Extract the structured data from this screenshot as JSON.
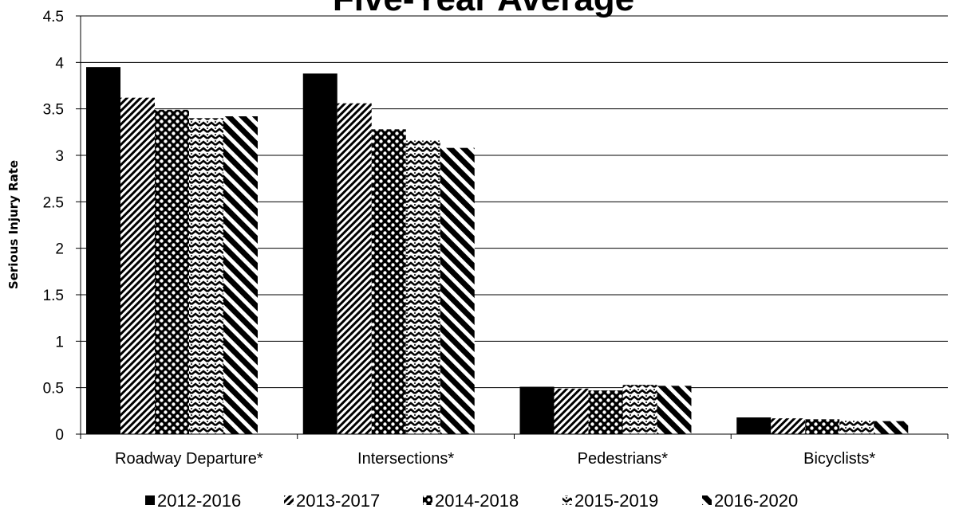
{
  "chart_data": {
    "type": "bar",
    "title": "Five-Year Average",
    "xlabel": "",
    "ylabel": "Serious Injury Rate",
    "ylim": [
      0,
      4.5
    ],
    "yticks": [
      0,
      0.5,
      1,
      1.5,
      2,
      2.5,
      3,
      3.5,
      4,
      4.5
    ],
    "grid": true,
    "legend_position": "bottom",
    "categories": [
      "Roadway Departure*",
      "Intersections*",
      "Pedestrians*",
      "Bicyclists*"
    ],
    "series": [
      {
        "name": "2012-2016",
        "values": [
          3.95,
          3.88,
          0.51,
          0.18
        ],
        "pattern": "solid"
      },
      {
        "name": "2013-2017",
        "values": [
          3.62,
          3.56,
          0.49,
          0.17
        ],
        "pattern": "diagonal-fine"
      },
      {
        "name": "2014-2018",
        "values": [
          3.49,
          3.28,
          0.47,
          0.16
        ],
        "pattern": "dots"
      },
      {
        "name": "2015-2019",
        "values": [
          3.4,
          3.16,
          0.53,
          0.15
        ],
        "pattern": "zigzag"
      },
      {
        "name": "2016-2020",
        "values": [
          3.42,
          3.08,
          0.52,
          0.14
        ],
        "pattern": "diagonal-wide"
      }
    ],
    "colors": {
      "ink": "#000000",
      "background": "#ffffff"
    }
  }
}
